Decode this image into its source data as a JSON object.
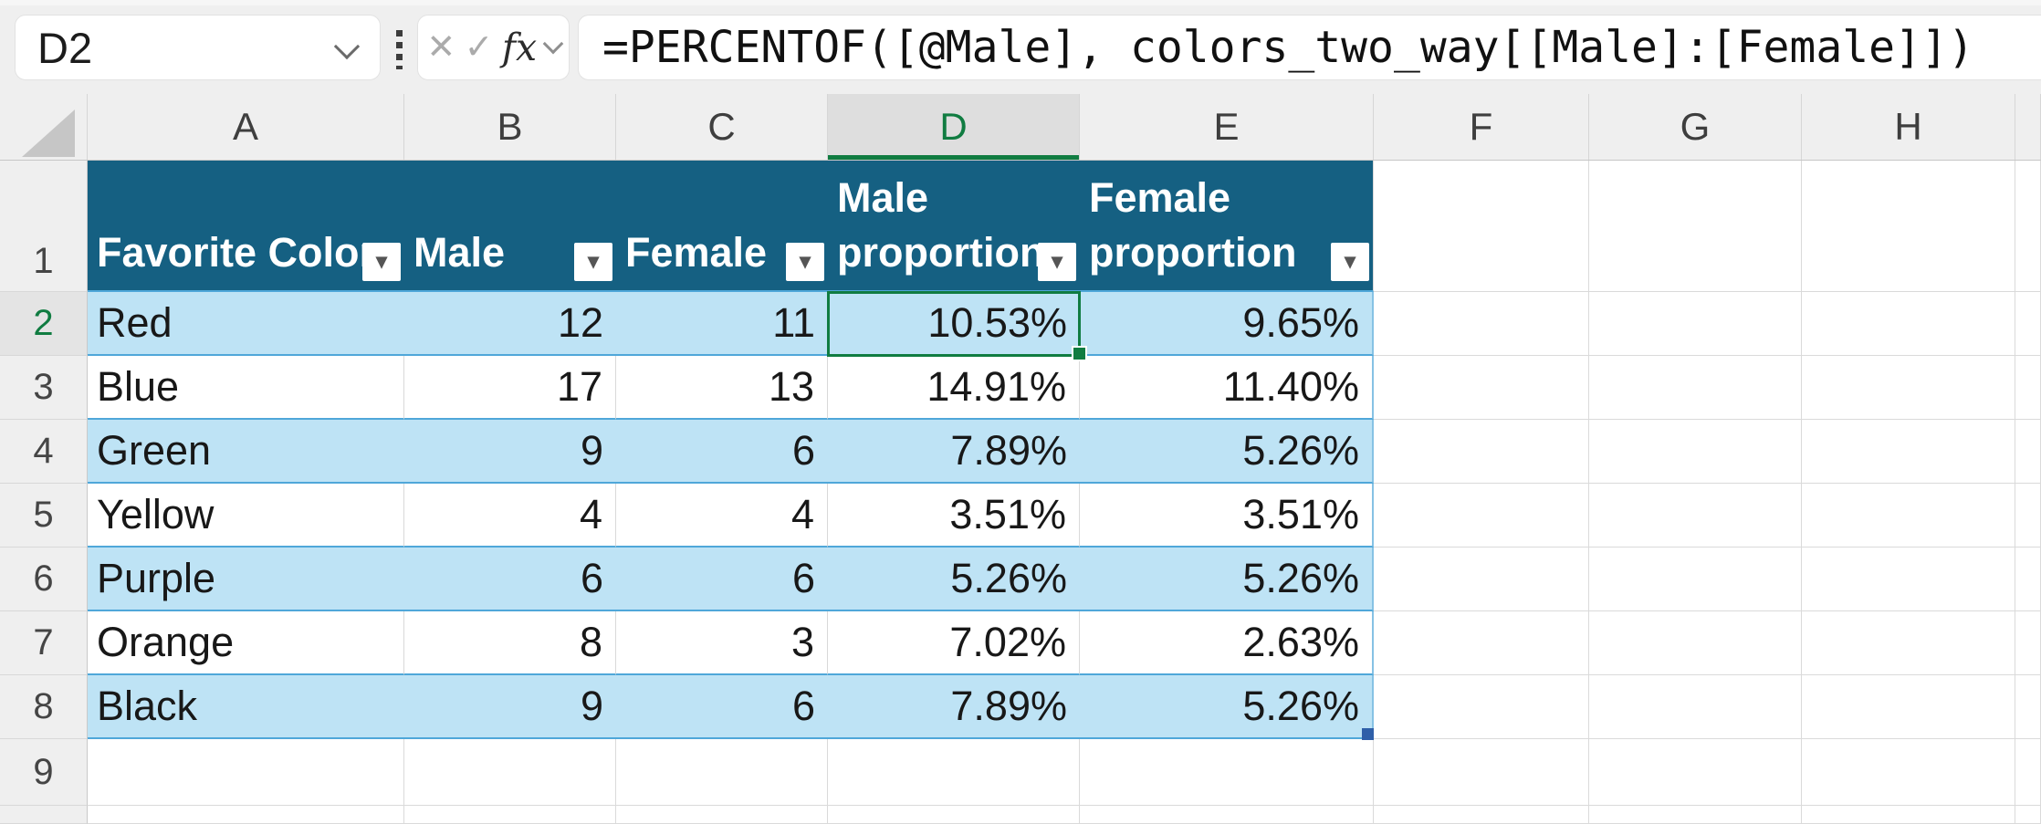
{
  "name_box": {
    "cell_reference": "D2"
  },
  "formula_bar": {
    "formula": "=PERCENTOF([@Male], colors_two_way[[Male]:[Female]])",
    "cancel_icon": "✕",
    "enter_icon": "✓",
    "insert_function_label": "fx"
  },
  "icons": {
    "filter_dropdown": "▾"
  },
  "grid": {
    "column_letters": [
      "A",
      "B",
      "C",
      "D",
      "E",
      "F",
      "G",
      "H"
    ],
    "row_numbers": [
      "1",
      "2",
      "3",
      "4",
      "5",
      "6",
      "7",
      "8",
      "9"
    ],
    "selected_cell": "D2",
    "selected_column": "D",
    "selected_row": "2"
  },
  "table": {
    "headers": [
      "Favorite Color",
      "Male",
      "Female",
      "Male proportion",
      "Female proportion"
    ],
    "rows": [
      [
        "Red",
        "12",
        "11",
        "10.53%",
        "9.65%"
      ],
      [
        "Blue",
        "17",
        "13",
        "14.91%",
        "11.40%"
      ],
      [
        "Green",
        "9",
        "6",
        "7.89%",
        "5.26%"
      ],
      [
        "Yellow",
        "4",
        "4",
        "3.51%",
        "3.51%"
      ],
      [
        "Purple",
        "6",
        "6",
        "5.26%",
        "5.26%"
      ],
      [
        "Orange",
        "8",
        "3",
        "7.02%",
        "2.63%"
      ],
      [
        "Black",
        "9",
        "6",
        "7.89%",
        "5.26%"
      ]
    ]
  },
  "colors": {
    "table_header_fill": "#156082",
    "banded_row_fill": "#BEE3F5",
    "table_row_border": "#4FA7D9",
    "selection_green": "#107C41",
    "table_resize_handle": "#2F5FA8"
  }
}
